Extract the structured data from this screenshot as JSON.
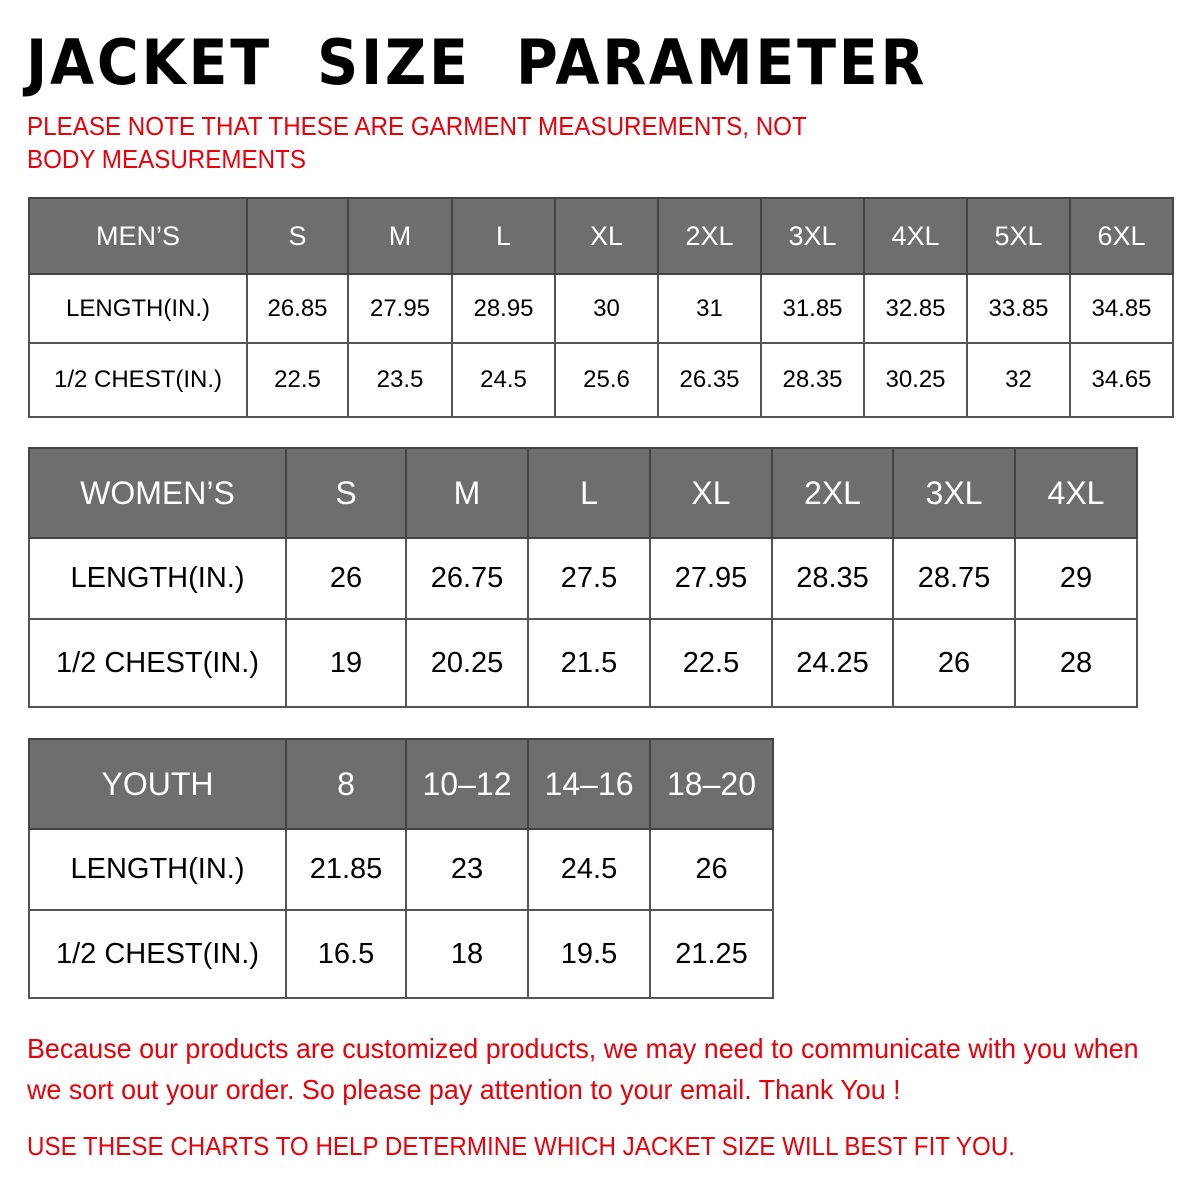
{
  "title": "JACKET  SIZE  PARAMETER",
  "note": "PLEASE NOTE THAT THESE ARE GARMENT MEASUREMENTS, NOT BODY MEASUREMENTS",
  "colors": {
    "header_bg": "#6e6e6e",
    "note_red": "#e8000b"
  },
  "tables": {
    "men": {
      "header": [
        "MEN’S",
        "S",
        "M",
        "L",
        "XL",
        "2XL",
        "3XL",
        "4XL",
        "5XL",
        "6XL"
      ],
      "rows": [
        [
          "LENGTH(IN.)",
          "26.85",
          "27.95",
          "28.95",
          "30",
          "31",
          "31.85",
          "32.85",
          "33.85",
          "34.85"
        ],
        [
          "1/2 CHEST(IN.)",
          "22.5",
          "23.5",
          "24.5",
          "25.6",
          "26.35",
          "28.35",
          "30.25",
          "32",
          "34.65"
        ]
      ]
    },
    "women": {
      "header": [
        "WOMEN’S",
        "S",
        "M",
        "L",
        "XL",
        "2XL",
        "3XL",
        "4XL"
      ],
      "rows": [
        [
          "LENGTH(IN.)",
          "26",
          "26.75",
          "27.5",
          "27.95",
          "28.35",
          "28.75",
          "29"
        ],
        [
          "1/2 CHEST(IN.)",
          "19",
          "20.25",
          "21.5",
          "22.5",
          "24.25",
          "26",
          "28"
        ]
      ]
    },
    "youth": {
      "header": [
        "YOUTH",
        "8",
        "10–12",
        "14–16",
        "18–20"
      ],
      "rows": [
        [
          "LENGTH(IN.)",
          "21.85",
          "23",
          "24.5",
          "26"
        ],
        [
          "1/2 CHEST(IN.)",
          "16.5",
          "18",
          "19.5",
          "21.25"
        ]
      ]
    }
  },
  "footer": {
    "message": "Because our products are customized products, we may need to communicate with you when we sort out your order. So please pay attention to your email. Thank You !",
    "hint": "USE THESE CHARTS TO HELP DETERMINE WHICH JACKET SIZE WILL BEST FIT YOU."
  }
}
